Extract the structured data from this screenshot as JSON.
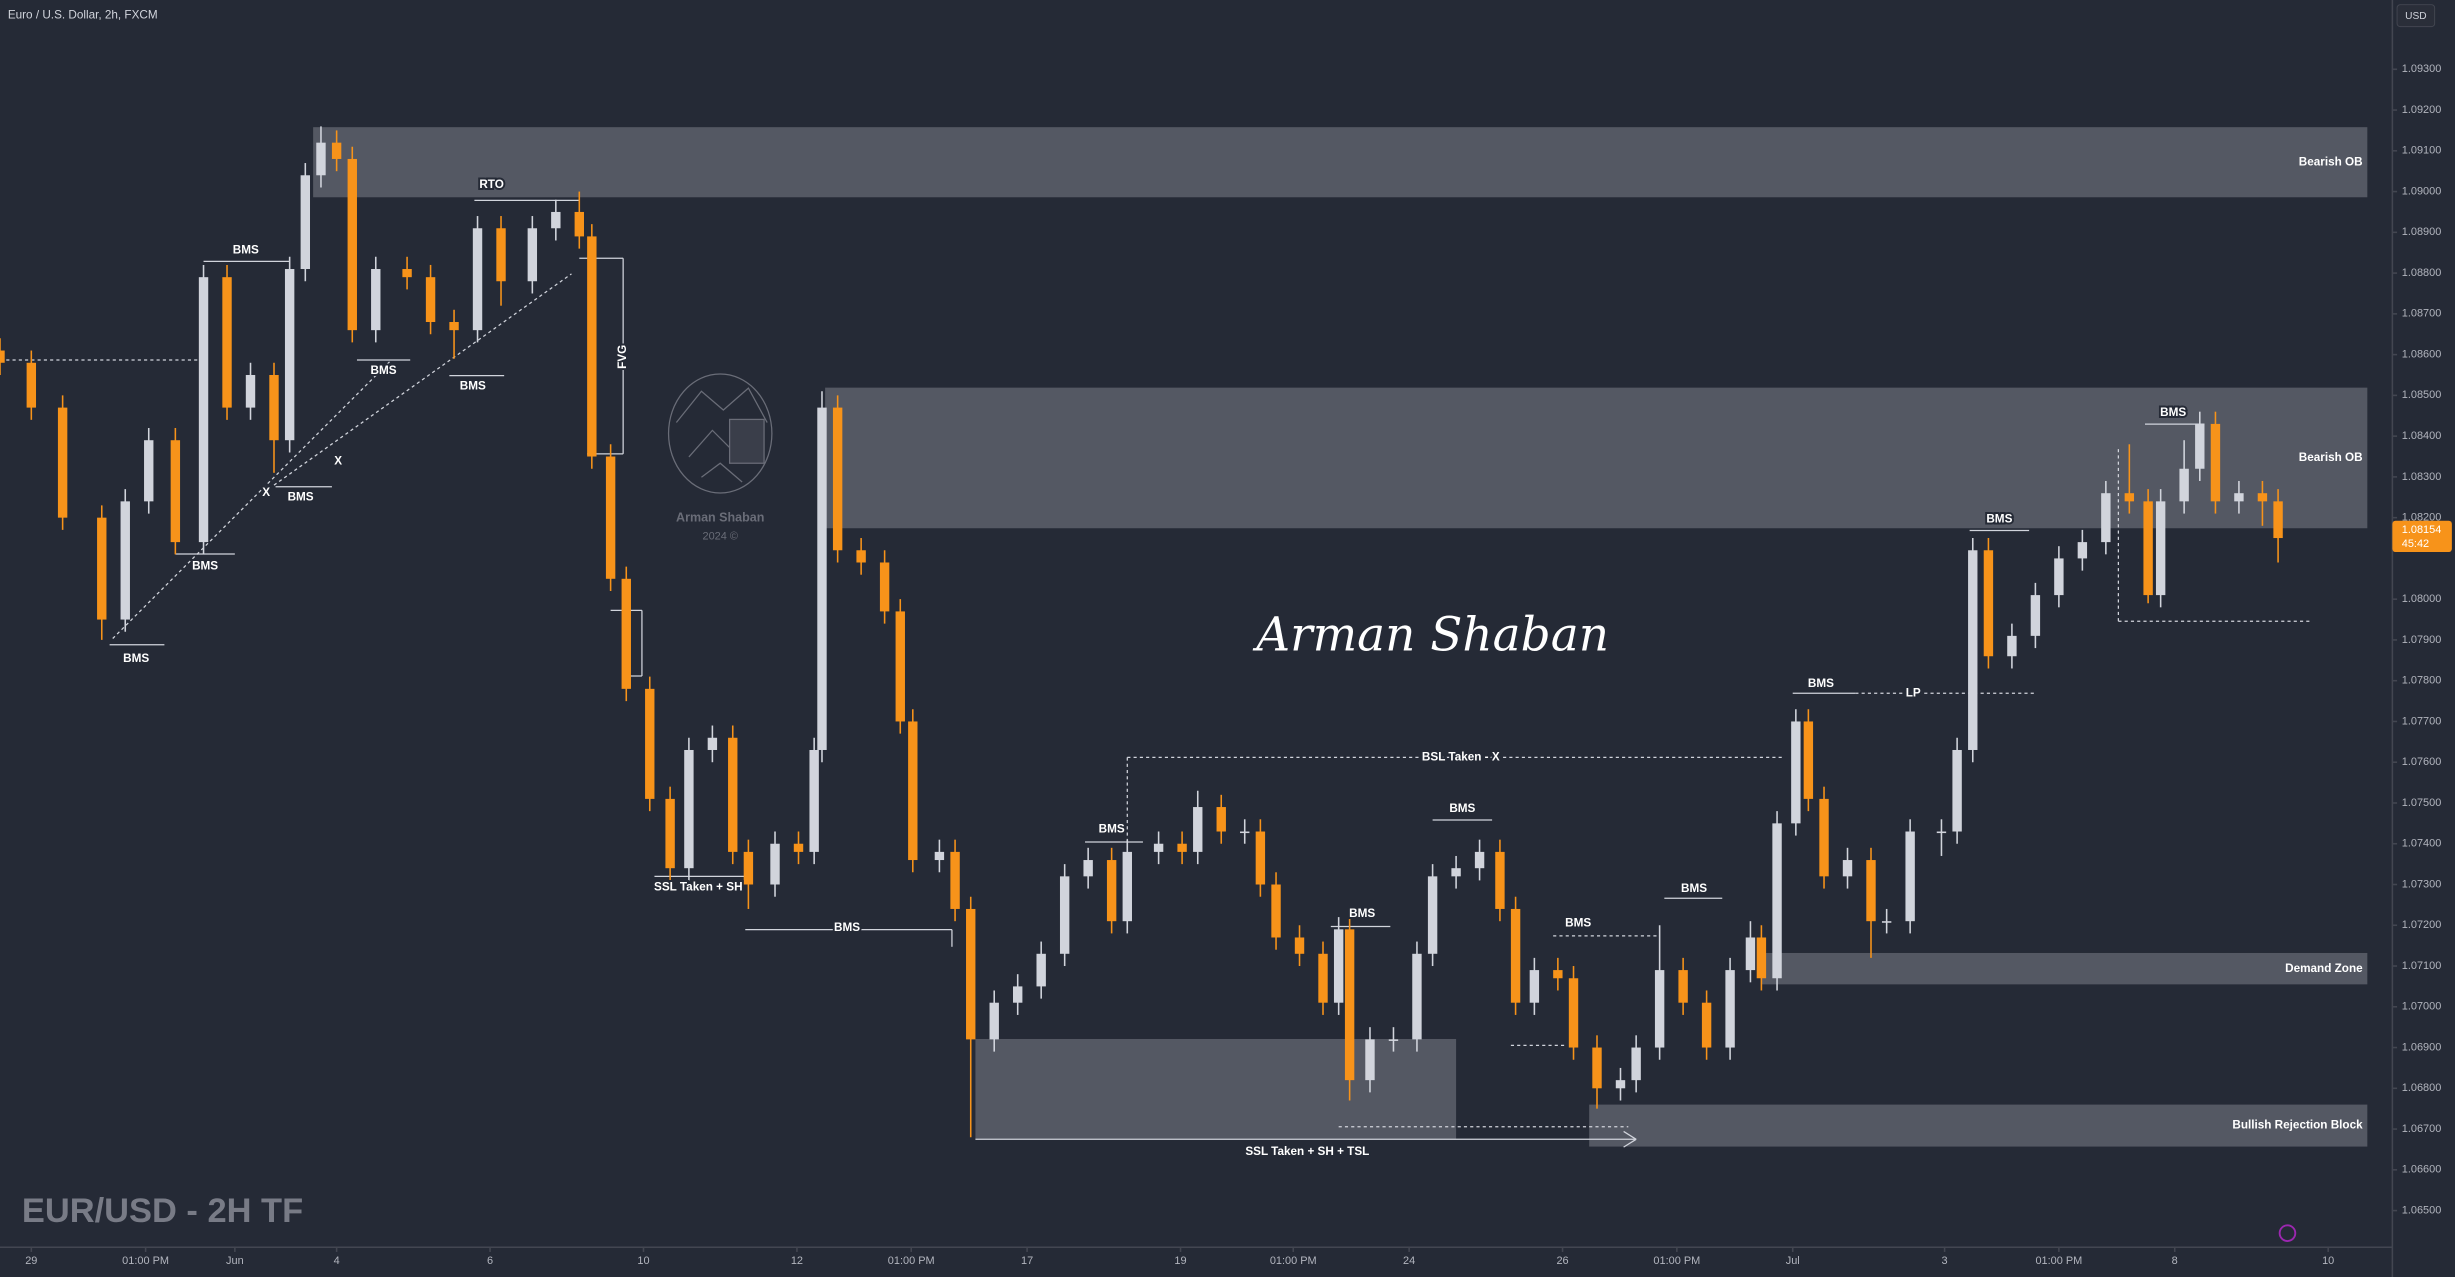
{
  "chart_data": {
    "type": "candlestick",
    "title": "Euro / U.S. Dollar, 2h, FXCM",
    "currency": "USD",
    "chart_label": "EUR/USD - 2H TF",
    "watermark": {
      "name": "Arman Shaban",
      "note": "2024 ©"
    },
    "signature": "Arman Shaban",
    "up_color": "#d1d4dc",
    "down_color": "#f7931a",
    "zone_color": "#5d606b",
    "grid": false,
    "ylim": [
      1.0641,
      1.0947
    ],
    "yticks": [
      {
        "value": 1.065,
        "label": "1.06500"
      },
      {
        "value": 1.066,
        "label": "1.06600"
      },
      {
        "value": 1.067,
        "label": "1.06700"
      },
      {
        "value": 1.068,
        "label": "1.06800"
      },
      {
        "value": 1.069,
        "label": "1.06900"
      },
      {
        "value": 1.07,
        "label": "1.07000"
      },
      {
        "value": 1.071,
        "label": "1.07100"
      },
      {
        "value": 1.072,
        "label": "1.07200"
      },
      {
        "value": 1.073,
        "label": "1.07300"
      },
      {
        "value": 1.074,
        "label": "1.07400"
      },
      {
        "value": 1.075,
        "label": "1.07500"
      },
      {
        "value": 1.076,
        "label": "1.07600"
      },
      {
        "value": 1.077,
        "label": "1.07700"
      },
      {
        "value": 1.078,
        "label": "1.07800"
      },
      {
        "value": 1.079,
        "label": "1.07900"
      },
      {
        "value": 1.08,
        "label": "1.08000"
      },
      {
        "value": 1.082,
        "label": "1.08200"
      },
      {
        "value": 1.083,
        "label": "1.08300"
      },
      {
        "value": 1.084,
        "label": "1.08400"
      },
      {
        "value": 1.085,
        "label": "1.08500"
      },
      {
        "value": 1.086,
        "label": "1.08600"
      },
      {
        "value": 1.087,
        "label": "1.08700"
      },
      {
        "value": 1.088,
        "label": "1.08800"
      },
      {
        "value": 1.089,
        "label": "1.08900"
      },
      {
        "value": 1.09,
        "label": "1.09000"
      },
      {
        "value": 1.091,
        "label": "1.09100"
      },
      {
        "value": 1.092,
        "label": "1.09200"
      },
      {
        "value": 1.093,
        "label": "1.09300"
      }
    ],
    "xlim": [
      0,
      382
    ],
    "xticks": [
      {
        "value": 5,
        "label": "29"
      },
      {
        "value": 23.25,
        "label": "01:00 PM"
      },
      {
        "value": 37.5,
        "label": "Jun"
      },
      {
        "value": 53.75,
        "label": "4"
      },
      {
        "value": 78.25,
        "label": "6"
      },
      {
        "value": 102.75,
        "label": "10"
      },
      {
        "value": 127.25,
        "label": "12"
      },
      {
        "value": 145.5,
        "label": "01:00 PM"
      },
      {
        "value": 164,
        "label": "17"
      },
      {
        "value": 188.5,
        "label": "19"
      },
      {
        "value": 206.5,
        "label": "01:00 PM"
      },
      {
        "value": 225,
        "label": "24"
      },
      {
        "value": 249.5,
        "label": "26"
      },
      {
        "value": 267.75,
        "label": "01:00 PM"
      },
      {
        "value": 286.25,
        "label": "Jul"
      },
      {
        "value": 310.5,
        "label": "3"
      },
      {
        "value": 328.75,
        "label": "01:00 PM"
      },
      {
        "value": 347.25,
        "label": "8"
      },
      {
        "value": 371.75,
        "label": "10"
      }
    ],
    "last_price": {
      "value": 1.08154,
      "label": "1.08154"
    },
    "countdown": "45:42",
    "x": [
      0,
      5,
      10,
      16.25,
      20,
      23.75,
      28,
      32.5,
      36.25,
      40,
      43.75,
      46.25,
      48.75,
      51.25,
      53.75,
      56.25,
      60,
      65,
      68.75,
      72.5,
      76.25,
      80,
      85,
      88.75,
      92.5,
      94.5,
      97.5,
      100,
      103.75,
      107,
      110,
      113.75,
      117,
      119.5,
      123.75,
      127.5,
      130,
      131.25,
      133.75,
      137.5,
      141.25,
      143.75,
      145.75,
      150,
      152.5,
      155,
      158.75,
      162.5,
      166.25,
      170,
      173.75,
      177.5,
      180,
      185,
      188.75,
      191.25,
      195,
      198.75,
      201.25,
      203.75,
      207.5,
      211.25,
      213.75,
      215.5,
      218.75,
      222.5,
      226.25,
      228.75,
      232.5,
      236.25,
      239.5,
      242,
      245,
      248.75,
      251.25,
      255,
      258.75,
      261.25,
      265,
      268.75,
      272.5,
      276.25,
      279.5,
      281.25,
      283.75,
      286.75,
      288.75,
      291.25,
      295,
      298.75,
      301.25,
      305,
      310,
      312.5,
      315,
      317.5,
      321.25,
      325,
      328.75,
      332.5,
      336.25,
      340,
      343,
      345,
      348.75,
      351.25,
      353.75,
      357.5,
      361.25,
      363.75
    ],
    "open": [
      1.0861,
      1.0858,
      1.0847,
      1.082,
      1.0795,
      1.0824,
      1.0839,
      1.0814,
      1.0879,
      1.0847,
      1.0855,
      1.0839,
      1.0881,
      1.0904,
      1.0912,
      1.0908,
      1.0866,
      1.0881,
      1.0879,
      1.0868,
      1.0866,
      1.0891,
      1.0878,
      1.0891,
      1.0895,
      1.0889,
      1.0835,
      1.0805,
      1.0778,
      1.0751,
      1.0734,
      1.0763,
      1.0766,
      1.0738,
      1.073,
      1.074,
      1.0738,
      1.0763,
      1.0847,
      1.0812,
      1.0809,
      1.0797,
      1.077,
      1.0736,
      1.0738,
      1.0724,
      1.0692,
      1.0701,
      1.0705,
      1.0713,
      1.0732,
      1.0736,
      1.0721,
      1.0738,
      1.074,
      1.0738,
      1.0749,
      1.0743,
      1.0743,
      1.073,
      1.0717,
      1.0713,
      1.0701,
      1.0719,
      1.0682,
      1.0692,
      1.0692,
      1.0713,
      1.0732,
      1.0734,
      1.0738,
      1.0724,
      1.0701,
      1.0709,
      1.0707,
      1.069,
      1.068,
      1.0682,
      1.069,
      1.0709,
      1.0701,
      1.069,
      1.0709,
      1.0717,
      1.0707,
      1.0745,
      1.077,
      1.0751,
      1.0732,
      1.0736,
      1.0721,
      1.0721,
      1.0743,
      1.0743,
      1.0763,
      1.0812,
      1.0786,
      1.0791,
      1.0801,
      1.081,
      1.0814,
      1.0826,
      1.0824,
      1.0801,
      1.0824,
      1.0832,
      1.0843,
      1.0824,
      1.0826,
      1.0824
    ],
    "high": [
      1.0864,
      1.0861,
      1.085,
      1.0823,
      1.0827,
      1.0842,
      1.0842,
      1.0882,
      1.0882,
      1.0858,
      1.0858,
      1.0884,
      1.0907,
      1.0916,
      1.0915,
      1.0911,
      1.0884,
      1.0884,
      1.0882,
      1.0871,
      1.0894,
      1.0894,
      1.0894,
      1.0898,
      1.09,
      1.0892,
      1.0838,
      1.0808,
      1.0781,
      1.0754,
      1.0766,
      1.0769,
      1.0769,
      1.0741,
      1.0743,
      1.0743,
      1.0766,
      1.0851,
      1.085,
      1.0815,
      1.0812,
      1.08,
      1.0773,
      1.0741,
      1.0741,
      1.0727,
      1.0704,
      1.0708,
      1.0716,
      1.0735,
      1.0739,
      1.0739,
      1.0741,
      1.0743,
      1.0743,
      1.0753,
      1.0752,
      1.0746,
      1.0746,
      1.0733,
      1.072,
      1.0716,
      1.0722,
      1.0722,
      1.0695,
      1.0695,
      1.0716,
      1.0735,
      1.0737,
      1.0741,
      1.0741,
      1.0727,
      1.0712,
      1.0712,
      1.071,
      1.0693,
      1.0685,
      1.0693,
      1.072,
      1.0712,
      1.0704,
      1.0712,
      1.0721,
      1.072,
      1.0748,
      1.0773,
      1.0773,
      1.0754,
      1.0739,
      1.0739,
      1.0724,
      1.0746,
      1.0746,
      1.0766,
      1.0815,
      1.0815,
      1.0794,
      1.0804,
      1.0813,
      1.0817,
      1.0829,
      1.0838,
      1.0827,
      1.0827,
      1.0839,
      1.0846,
      1.0846,
      1.0829,
      1.0829,
      1.0827
    ],
    "low": [
      1.0855,
      1.0844,
      1.0817,
      1.079,
      1.0792,
      1.0821,
      1.0811,
      1.0811,
      1.0844,
      1.0844,
      1.0831,
      1.0836,
      1.0878,
      1.0901,
      1.0905,
      1.0863,
      1.0863,
      1.0876,
      1.0865,
      1.0859,
      1.0863,
      1.0872,
      1.0875,
      1.0888,
      1.0886,
      1.0832,
      1.0802,
      1.0775,
      1.0748,
      1.0731,
      1.0731,
      1.076,
      1.0735,
      1.0724,
      1.0727,
      1.0735,
      1.0735,
      1.076,
      1.0809,
      1.0806,
      1.0794,
      1.0767,
      1.0733,
      1.0733,
      1.0721,
      1.0668,
      1.0689,
      1.0698,
      1.0702,
      1.071,
      1.0729,
      1.0718,
      1.0718,
      1.0735,
      1.0735,
      1.0735,
      1.074,
      1.074,
      1.0727,
      1.0714,
      1.071,
      1.0698,
      1.0698,
      1.0677,
      1.0679,
      1.0689,
      1.0689,
      1.071,
      1.0729,
      1.0731,
      1.0721,
      1.0698,
      1.0698,
      1.0704,
      1.0687,
      1.0675,
      1.0677,
      1.0679,
      1.0687,
      1.0698,
      1.0687,
      1.0687,
      1.0706,
      1.0704,
      1.0704,
      1.0742,
      1.0748,
      1.0729,
      1.0729,
      1.0712,
      1.0718,
      1.0718,
      1.0737,
      1.074,
      1.076,
      1.0783,
      1.0783,
      1.0788,
      1.0798,
      1.0807,
      1.0811,
      1.0821,
      1.0799,
      1.0798,
      1.0821,
      1.0829,
      1.0821,
      1.0821,
      1.0818,
      1.0809
    ],
    "close": [
      1.0858,
      1.0847,
      1.082,
      1.0795,
      1.0824,
      1.0839,
      1.0814,
      1.0879,
      1.0847,
      1.0855,
      1.0839,
      1.0881,
      1.0904,
      1.0912,
      1.0908,
      1.0866,
      1.0881,
      1.0879,
      1.0868,
      1.0866,
      1.0891,
      1.0878,
      1.0891,
      1.0895,
      1.0889,
      1.0835,
      1.0805,
      1.0778,
      1.0751,
      1.0734,
      1.0763,
      1.0766,
      1.0738,
      1.073,
      1.074,
      1.0738,
      1.0763,
      1.0847,
      1.0812,
      1.0809,
      1.0797,
      1.077,
      1.0736,
      1.0738,
      1.0724,
      1.0692,
      1.0701,
      1.0705,
      1.0713,
      1.0732,
      1.0736,
      1.0721,
      1.0738,
      1.074,
      1.0738,
      1.0749,
      1.0743,
      1.0743,
      1.073,
      1.0717,
      1.0713,
      1.0701,
      1.0719,
      1.0682,
      1.0692,
      1.0692,
      1.0713,
      1.0732,
      1.0734,
      1.0738,
      1.0724,
      1.0701,
      1.0709,
      1.0707,
      1.069,
      1.068,
      1.0682,
      1.069,
      1.0709,
      1.0701,
      1.069,
      1.0709,
      1.0717,
      1.0707,
      1.0745,
      1.077,
      1.0751,
      1.0732,
      1.0736,
      1.0721,
      1.0721,
      1.0743,
      1.0743,
      1.0763,
      1.0812,
      1.0786,
      1.0791,
      1.0801,
      1.081,
      1.0814,
      1.0826,
      1.0824,
      1.0801,
      1.0824,
      1.0832,
      1.0843,
      1.0824,
      1.0826,
      1.0824,
      1.0815
    ],
    "zones": [
      {
        "label": "Bearish OB",
        "top": 1.09158,
        "bottom": 1.08986,
        "x0": 50,
        "x1": 378
      },
      {
        "label": "Bearish OB",
        "top": 1.08519,
        "bottom": 1.08174,
        "x0": 131.75,
        "x1": 378
      },
      {
        "label": "Demand Zone",
        "top": 1.07132,
        "bottom": 1.07055,
        "x0": 281.25,
        "x1": 378
      },
      {
        "label": "Bullish Rejection Block",
        "top": 1.0676,
        "bottom": 1.06657,
        "x0": 253.75,
        "x1": 378
      },
      {
        "top": 1.06921,
        "bottom": 1.06676,
        "x0": 155.75,
        "x1": 232.5
      }
    ],
    "annotations": [
      "BMS",
      "BMS",
      "BMS",
      "RTO",
      "BMS",
      "BMS",
      "BMS",
      "X",
      "X",
      "FVG",
      "SSL Taken + SH",
      "BMS",
      "BSL Taken - X",
      "BMS",
      "BMS",
      "BMS",
      "BMS",
      "BMS",
      "SSL Taken + SH + TSL",
      "BMS",
      "LP",
      "BMS",
      "BMS"
    ]
  }
}
